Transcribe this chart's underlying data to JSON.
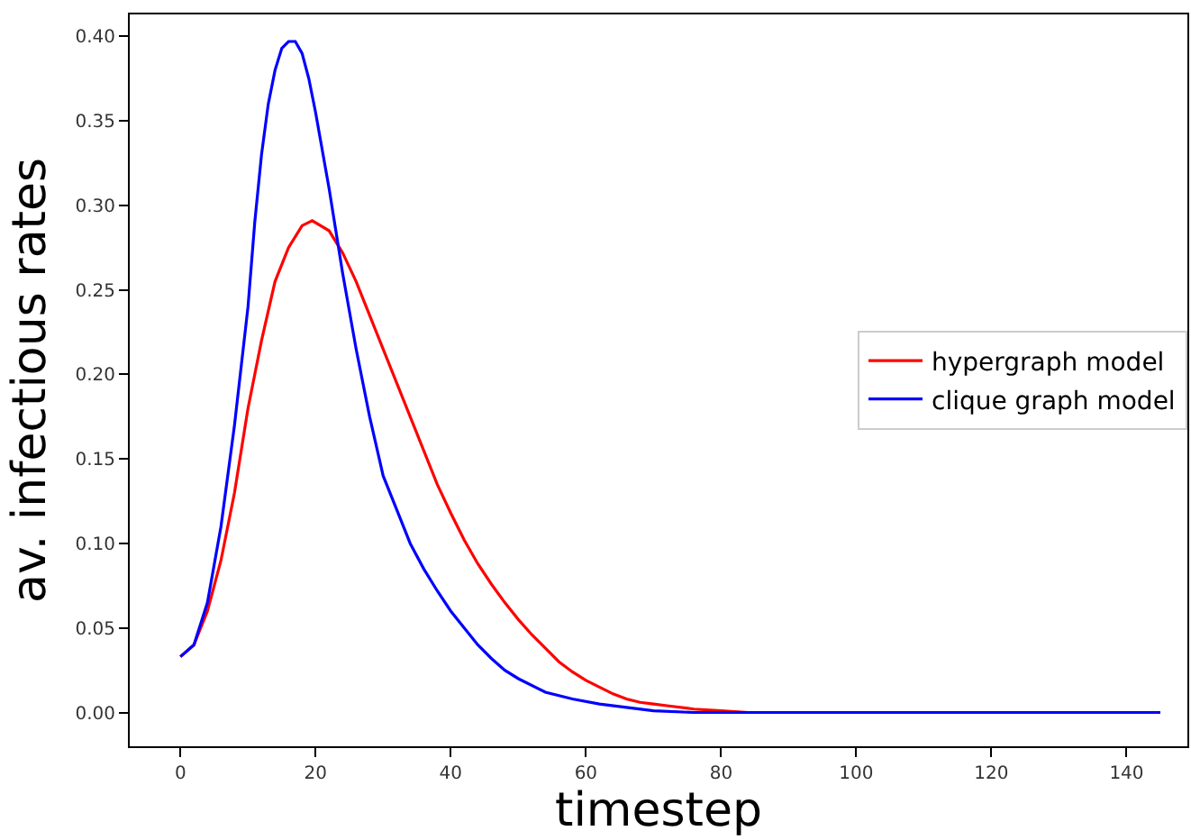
{
  "chart_data": {
    "type": "line",
    "xlabel": "timestep",
    "ylabel": "av. infectious rates",
    "xlim": [
      -7.5,
      149
    ],
    "ylim": [
      -0.02,
      0.413
    ],
    "xticks": [
      0,
      20,
      40,
      60,
      80,
      100,
      120,
      140
    ],
    "yticks": [
      {
        "value": 0,
        "label": "0.00"
      },
      {
        "value": 0.05,
        "label": "0.05"
      },
      {
        "value": 0.1,
        "label": "0.10"
      },
      {
        "value": 0.15,
        "label": "0.15"
      },
      {
        "value": 0.2,
        "label": "0.20"
      },
      {
        "value": 0.25,
        "label": "0.25"
      },
      {
        "value": 0.3,
        "label": "0.30"
      },
      {
        "value": 0.35,
        "label": "0.35"
      },
      {
        "value": 0.4,
        "label": "0.40"
      }
    ],
    "legend": "right",
    "marker": "none",
    "line_style": "solid",
    "series": [
      {
        "name": "hypergraph model",
        "color": "#ff0000",
        "x": [
          0,
          2,
          4,
          6,
          8,
          10,
          12,
          14,
          16,
          18,
          19.5,
          22,
          24,
          26,
          28,
          30,
          32,
          34,
          36,
          38,
          40,
          42,
          44,
          46,
          48,
          50,
          52,
          54,
          56,
          58,
          60,
          62,
          64,
          66,
          68,
          70,
          72,
          76,
          80,
          84,
          90,
          100
        ],
        "values": [
          0.033,
          0.04,
          0.06,
          0.09,
          0.13,
          0.18,
          0.22,
          0.255,
          0.275,
          0.288,
          0.291,
          0.285,
          0.272,
          0.255,
          0.235,
          0.215,
          0.195,
          0.175,
          0.155,
          0.135,
          0.118,
          0.102,
          0.088,
          0.076,
          0.065,
          0.055,
          0.046,
          0.038,
          0.03,
          0.024,
          0.019,
          0.015,
          0.011,
          0.008,
          0.006,
          0.005,
          0.004,
          0.002,
          0.001,
          0,
          0,
          0
        ]
      },
      {
        "name": "clique graph model",
        "color": "#0000ff",
        "x": [
          0,
          2,
          4,
          6,
          8,
          10,
          11,
          12,
          13,
          14,
          15,
          16,
          17,
          18,
          19,
          20,
          22,
          24,
          26,
          28,
          30,
          32,
          34,
          36,
          38,
          40,
          42,
          44,
          46,
          48,
          50,
          54,
          58,
          62,
          66,
          70,
          76,
          80,
          100,
          120,
          145
        ],
        "values": [
          0.033,
          0.04,
          0.065,
          0.11,
          0.17,
          0.24,
          0.29,
          0.33,
          0.36,
          0.38,
          0.393,
          0.397,
          0.397,
          0.39,
          0.375,
          0.355,
          0.31,
          0.26,
          0.215,
          0.175,
          0.14,
          0.12,
          0.1,
          0.085,
          0.072,
          0.06,
          0.05,
          0.04,
          0.032,
          0.025,
          0.02,
          0.012,
          0.008,
          0.005,
          0.003,
          0.001,
          0,
          0,
          0,
          0,
          0
        ]
      }
    ]
  }
}
